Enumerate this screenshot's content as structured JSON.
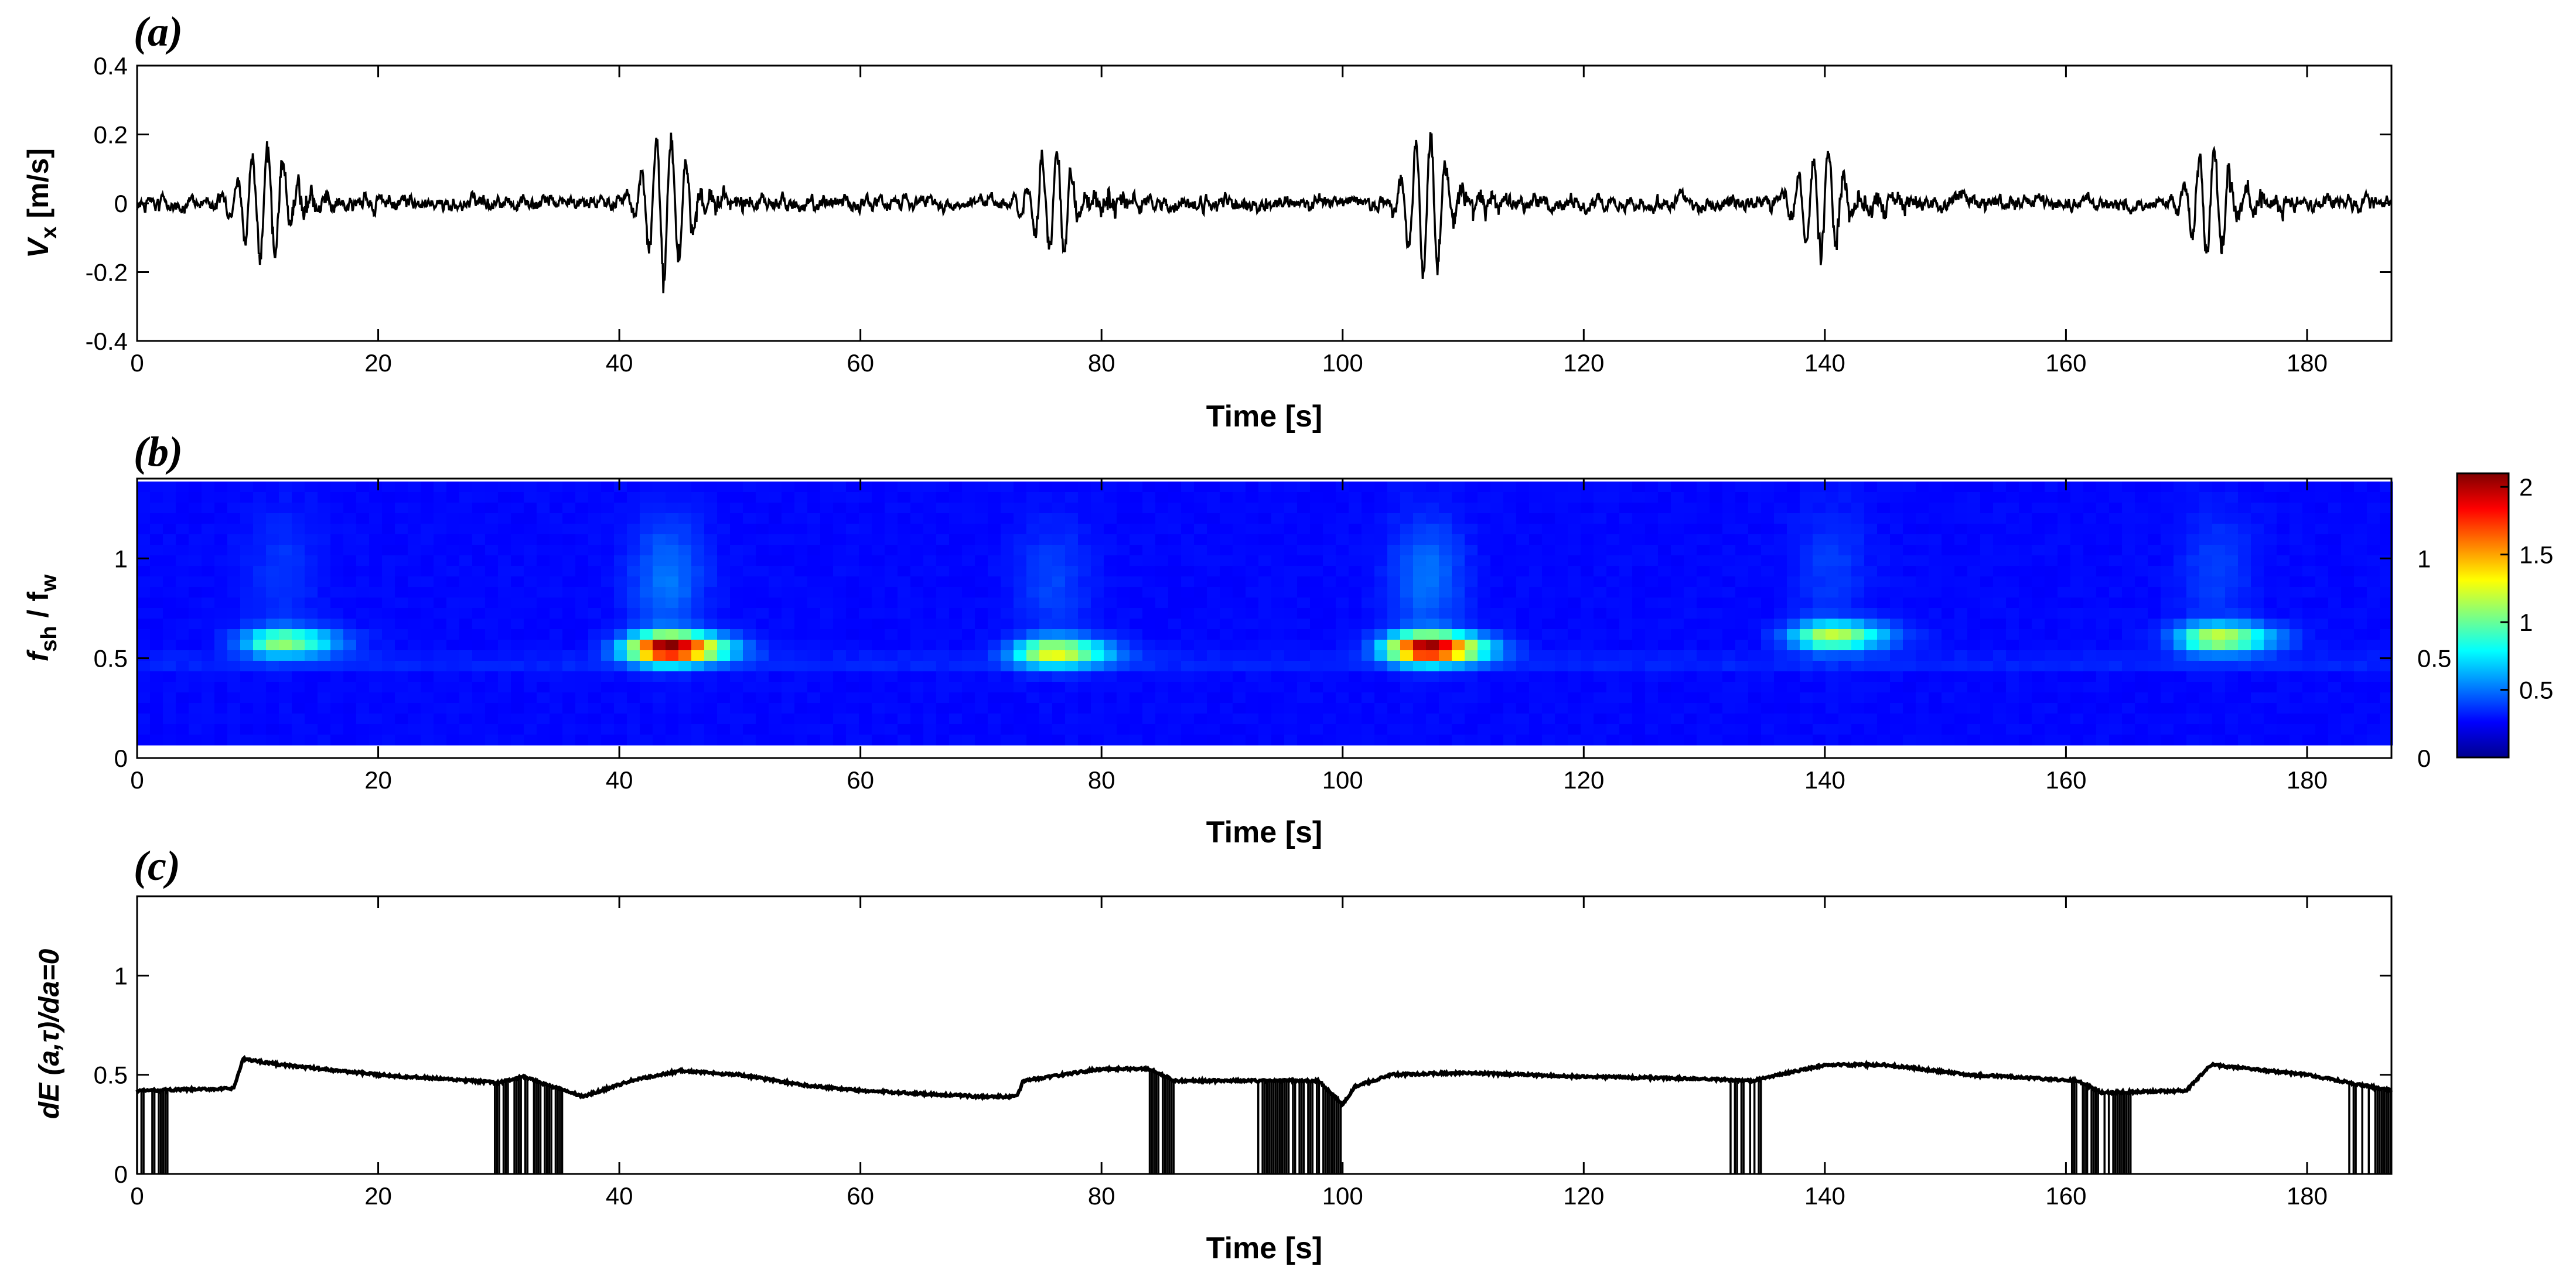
{
  "chart_data": [
    {
      "panel": "(a)",
      "type": "line",
      "xlabel": "Time [s]",
      "ylabel": "V",
      "ylabel_sub": "x",
      "ylabel_unit": " [m/s]",
      "xlim": [
        0,
        187
      ],
      "ylim": [
        -0.4,
        0.4
      ],
      "xticks": [
        0,
        20,
        40,
        60,
        80,
        100,
        120,
        140,
        160,
        180
      ],
      "yticks": [
        -0.4,
        -0.2,
        0,
        0.2,
        0.4
      ],
      "ytick_labels": [
        "-0.4",
        "-0.2",
        "0",
        "0.2",
        "0.4"
      ],
      "bursts": [
        {
          "t": 10.5,
          "amp": 0.2
        },
        {
          "t": 44,
          "amp": 0.22
        },
        {
          "t": 76,
          "amp": 0.17
        },
        {
          "t": 107,
          "amp": 0.23
        },
        {
          "t": 140,
          "amp": 0.18
        },
        {
          "t": 172,
          "amp": 0.19
        }
      ],
      "noise_amp": 0.035
    },
    {
      "panel": "(b)",
      "type": "heatmap",
      "xlabel": "Time [s]",
      "ylabel_parts": [
        "f",
        "sh",
        " / f",
        "w"
      ],
      "xlim": [
        0,
        187
      ],
      "ylim": [
        0,
        1.4
      ],
      "xticks": [
        0,
        20,
        40,
        60,
        80,
        100,
        120,
        140,
        160,
        180
      ],
      "yticks": [
        0,
        0.5,
        1
      ],
      "ytick_labels": [
        "0",
        "0.5",
        "1"
      ],
      "right_yticks": [
        "0",
        "0.5",
        "1"
      ],
      "colorbar": {
        "min": 0,
        "max": 2.1,
        "ticks": [
          0.5,
          1,
          1.5,
          2
        ],
        "tick_labels": [
          "0.5",
          "1",
          "1.5",
          "2"
        ]
      },
      "blobs": [
        {
          "t": 12,
          "f": 0.58,
          "peak": 0.9
        },
        {
          "t": 44,
          "f": 0.55,
          "peak": 2.05
        },
        {
          "t": 76,
          "f": 0.53,
          "peak": 1.1
        },
        {
          "t": 107,
          "f": 0.55,
          "peak": 2.0
        },
        {
          "t": 140.5,
          "f": 0.61,
          "peak": 1.0
        },
        {
          "t": 172.5,
          "f": 0.6,
          "peak": 1.05
        }
      ]
    },
    {
      "panel": "(c)",
      "type": "line",
      "xlabel": "Time [s]",
      "ylabel": "dE (a,τ)/da=0",
      "xlim": [
        0,
        187
      ],
      "ylim": [
        0,
        1.4
      ],
      "xticks": [
        0,
        20,
        40,
        60,
        80,
        100,
        120,
        140,
        160,
        180
      ],
      "yticks": [
        0,
        0.5,
        1
      ],
      "ytick_labels": [
        "0",
        "0.5",
        "1"
      ],
      "ridge": {
        "t": [
          0,
          8,
          8.8,
          12,
          20,
          30,
          32,
          37,
          41,
          45,
          50,
          55,
          60,
          70,
          73,
          73.5,
          80,
          84,
          86,
          98,
          100,
          101,
          104,
          110,
          120,
          130,
          134,
          140,
          145,
          152,
          161,
          163,
          170,
          172,
          180,
          187
        ],
        "v": [
          0.42,
          0.43,
          0.58,
          0.55,
          0.5,
          0.46,
          0.49,
          0.39,
          0.47,
          0.52,
          0.5,
          0.45,
          0.42,
          0.39,
          0.39,
          0.47,
          0.53,
          0.53,
          0.47,
          0.47,
          0.35,
          0.44,
          0.5,
          0.51,
          0.49,
          0.48,
          0.47,
          0.55,
          0.55,
          0.5,
          0.47,
          0.41,
          0.42,
          0.55,
          0.5,
          0.42
        ]
      },
      "drop_regions": [
        [
          0,
          3
        ],
        [
          29.5,
          35.5
        ],
        [
          84,
          86
        ],
        [
          93,
          100
        ],
        [
          132,
          135
        ],
        [
          160.5,
          165.5
        ],
        [
          183.5,
          187
        ]
      ]
    }
  ]
}
